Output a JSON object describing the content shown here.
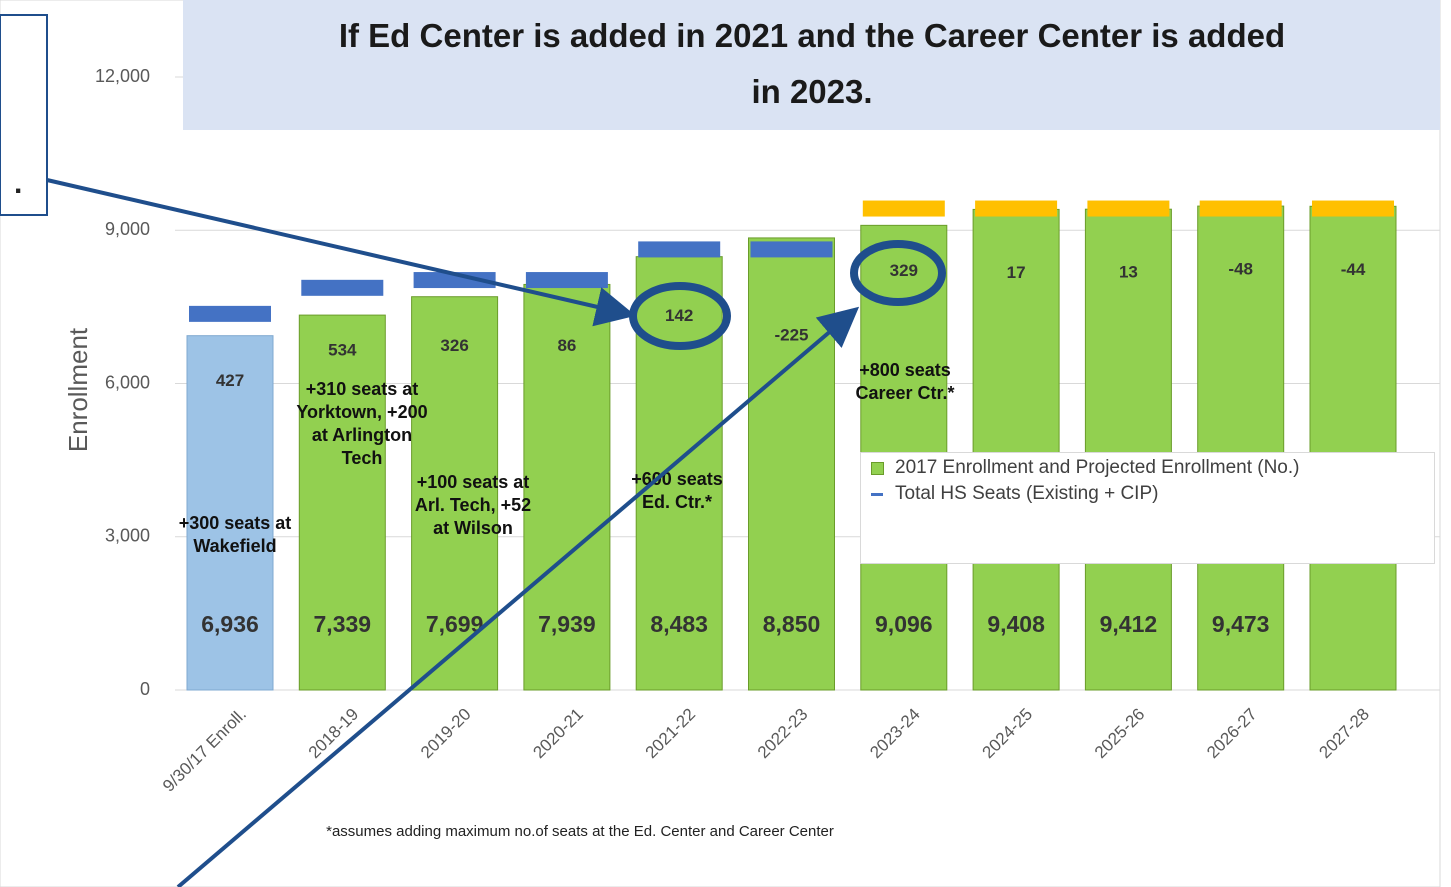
{
  "chart_data": {
    "type": "bar",
    "title": "If Ed Center is added in 2021 and the Career Center is added in 2023.",
    "y_label": "Enrollment",
    "categories": [
      "9/30/17 Enroll.",
      "2018-19",
      "2019-20",
      "2020-21",
      "2021-22",
      "2022-23",
      "2023-24",
      "2024-25",
      "2025-26",
      "2026-27",
      "2027-28"
    ],
    "series": [
      {
        "name": "2017 Enrollment and Projected Enrollment (No.)",
        "colors": [
          "#9dc3e6",
          "#92d050",
          "#92d050",
          "#92d050",
          "#92d050",
          "#92d050",
          "#92d050",
          "#92d050",
          "#92d050",
          "#92d050",
          "#92d050"
        ],
        "values": [
          6936,
          7339,
          7699,
          7939,
          8483,
          8850,
          9096,
          9408,
          9412,
          9473,
          9469
        ],
        "value_labels": [
          "6,936",
          "7,339",
          "7,699",
          "7,939",
          "8,483",
          "8,850",
          "9,096",
          "9,408",
          "9,412",
          "9,473",
          null
        ]
      },
      {
        "name": "Total HS Seats (Existing + CIP)",
        "color": "#4472c4",
        "colors": [
          "#4472c4",
          "#4472c4",
          "#4472c4",
          "#4472c4",
          "#4472c4",
          "#4472c4",
          "#ffc000",
          "#ffc000",
          "#ffc000",
          "#ffc000",
          "#ffc000"
        ],
        "values": [
          7363,
          7873,
          8025,
          8025,
          8625,
          8625,
          9425,
          9425,
          9425,
          9425,
          9425
        ]
      }
    ],
    "differences": [
      427,
      534,
      326,
      86,
      142,
      -225,
      329,
      17,
      13,
      -48,
      -44
    ],
    "annotations": [
      {
        "lines": [
          "+300 seats at",
          "Wakefield"
        ]
      },
      {
        "lines": [
          "+310 seats at",
          "Yorktown, +200",
          "at Arlington",
          "Tech"
        ]
      },
      {
        "lines": [
          "+100 seats at",
          "Arl. Tech, +52",
          "at Wilson"
        ]
      },
      {
        "lines": [
          "+600 seats",
          "Ed. Ctr.*"
        ]
      },
      {
        "lines": [
          "+800 seats",
          "Career Ctr.*"
        ]
      }
    ],
    "footnote": "*assumes adding maximum no.of seats at the Ed. Center and Career Center",
    "side_note": ".",
    "ylim": [
      0,
      12000
    ],
    "yticks": [
      0,
      {
        "value": 3000,
        "label": "3,000"
      },
      {
        "value": 6000,
        "label": "6,000"
      },
      {
        "value": 9000,
        "label": "9,000"
      },
      {
        "value": 12000,
        "label": "12,000"
      }
    ],
    "grid": true
  }
}
